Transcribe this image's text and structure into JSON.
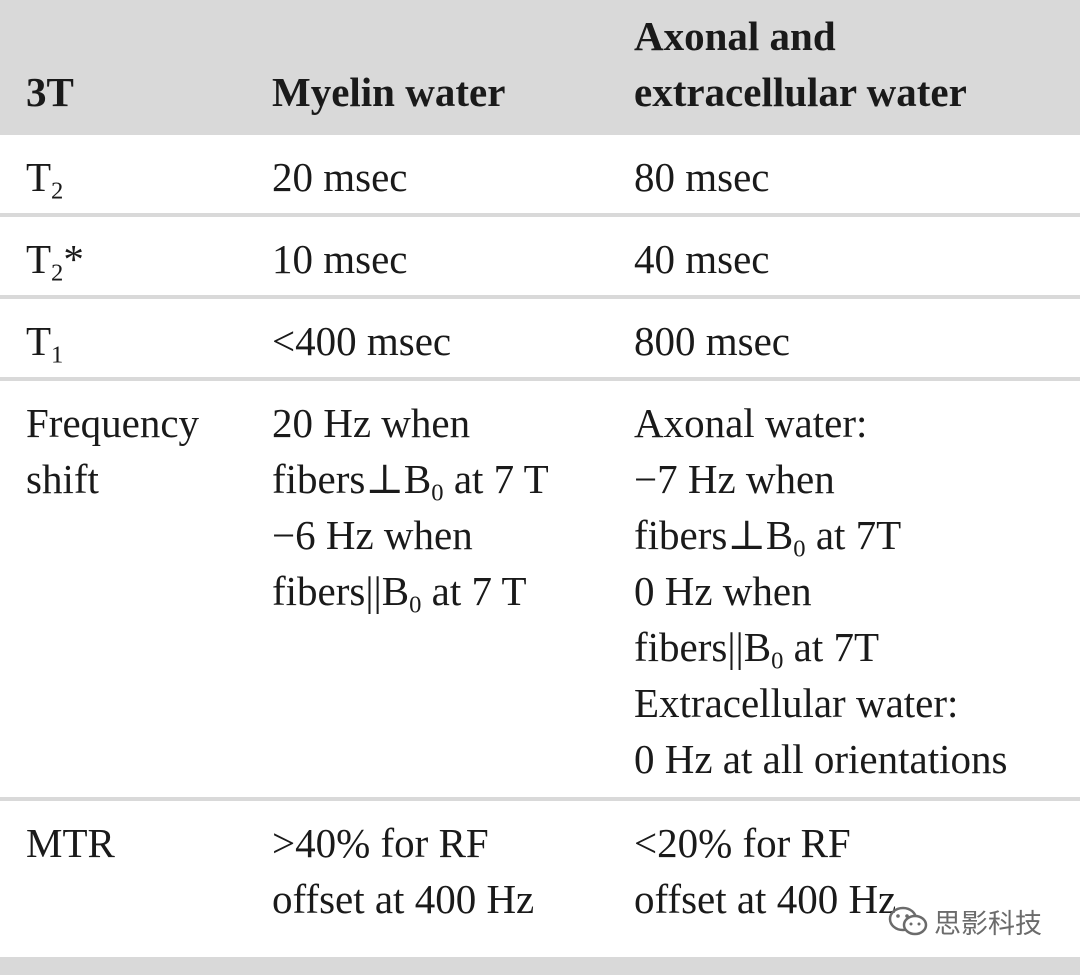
{
  "header": {
    "col1": "3T",
    "col2": "Myelin water",
    "col3_line1": "Axonal and",
    "col3_line2": "extracellular water"
  },
  "rows": {
    "t2": {
      "label_main": "T",
      "label_sub": "2",
      "myelin": "20 msec",
      "axonal": "80 msec"
    },
    "t2star": {
      "label_main": "T",
      "label_sub": "2",
      "label_suffix": "*",
      "myelin": "10 msec",
      "axonal": "40 msec"
    },
    "t1": {
      "label_main": "T",
      "label_sub": "1",
      "myelin": "<400 msec",
      "axonal": "800 msec"
    },
    "freq": {
      "label_line1": "Frequency",
      "label_line2": "shift",
      "myelin": {
        "l1": "20 Hz when",
        "l2a": "fibers⊥B",
        "l2sub": "0",
        "l2b": " at 7 T",
        "l3": "−6 Hz when",
        "l4a": "fibers||B",
        "l4sub": "0",
        "l4b": " at 7 T"
      },
      "axonal": {
        "l1": "Axonal water:",
        "l2": "−7 Hz when",
        "l3a": "fibers⊥B",
        "l3sub": "0",
        "l3b": " at 7T",
        "l4": "0 Hz when",
        "l5a": "fibers||B",
        "l5sub": "0",
        "l5b": " at 7T",
        "l6": "Extracellular water:",
        "l7": "0 Hz at all orientations"
      }
    },
    "mtr": {
      "label": "MTR",
      "myelin_l1": ">40% for RF",
      "myelin_l2": "offset at 400 Hz",
      "axonal_l1": "<20% for RF",
      "axonal_l2": "offset at 400 Hz"
    }
  },
  "watermark": {
    "icon": "wechat-icon",
    "text": "思影科技"
  }
}
